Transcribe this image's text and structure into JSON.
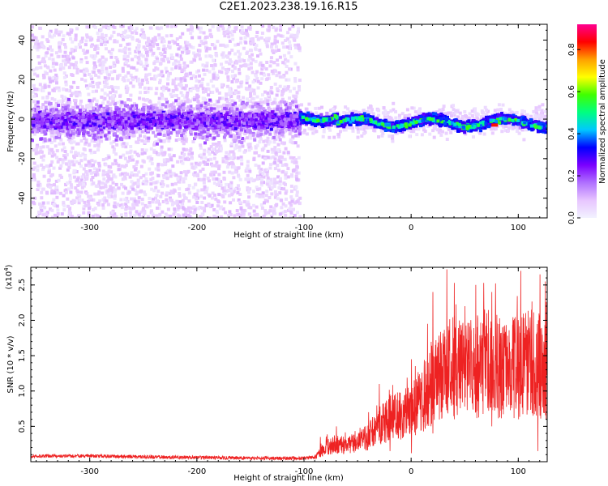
{
  "title": "C2E1.2023.238.19.16.R15",
  "colors": {
    "snr_line": "#ee2222",
    "axis": "#000000",
    "colorbar_stops": [
      "#f2f2ff",
      "#e7c5ff",
      "#b070ff",
      "#7a00ff",
      "#0000ff",
      "#00c8ff",
      "#00ff80",
      "#40ff00",
      "#ffff00",
      "#ffa000",
      "#ff0000",
      "#ff0090"
    ]
  },
  "chart_data": [
    {
      "type": "heatmap",
      "name": "spectrogram",
      "xlabel": "Height of straight line (km)",
      "ylabel": "Frequency (Hz)",
      "xlim": [
        -355,
        127
      ],
      "ylim": [
        -50,
        48
      ],
      "xticks": [
        -300,
        -200,
        -100,
        0,
        100
      ],
      "yticks": [
        -40,
        -20,
        0,
        20,
        40
      ],
      "colorbar": {
        "label": "Normalized spectral amplitude",
        "range": [
          0.0,
          0.92
        ],
        "ticks": [
          0.0,
          0.2,
          0.4,
          0.6,
          0.8
        ]
      },
      "features": {
        "noise_region_x": [
          -355,
          -105
        ],
        "signal_region_x": [
          -105,
          127
        ],
        "band_center_hz": 0,
        "band_width_hz": 10,
        "peak_amplitude_x": 78,
        "peak_amplitude_hz": -3
      }
    },
    {
      "type": "line",
      "name": "snr",
      "xlabel": "Height of straight line (km)",
      "ylabel": "SNR (10 * v/v)",
      "y_multiplier": "(x10",
      "y_multiplier_exp": "4",
      "y_multiplier_close": ")",
      "xlim": [
        -355,
        127
      ],
      "ylim": [
        0,
        27500
      ],
      "xticks": [
        -300,
        -200,
        -100,
        0,
        100
      ],
      "yticks": [
        5000,
        10000,
        15000,
        20000,
        25000
      ],
      "ytick_labels": [
        "0.5",
        "1.0",
        "1.5",
        "2.0",
        "2.5"
      ],
      "series": [
        {
          "x": [
            -355,
            -300,
            -250,
            -200,
            -150,
            -100,
            -90,
            -80,
            -70,
            -60,
            -50,
            -40,
            -30,
            -20,
            -10,
            0,
            10,
            20,
            30,
            40,
            50,
            60,
            70,
            80,
            90,
            100,
            110,
            120,
            127
          ],
          "y": [
            800,
            800,
            700,
            600,
            500,
            500,
            600,
            2000,
            2500,
            2200,
            3000,
            3500,
            5000,
            6000,
            6500,
            7000,
            9000,
            11000,
            12500,
            13500,
            13000,
            13500,
            14000,
            13500,
            13000,
            13500,
            14000,
            13500,
            13000
          ],
          "peaks": [
            [
              -85,
              3500
            ],
            [
              -70,
              5000
            ],
            [
              -40,
              7000
            ],
            [
              -30,
              11000
            ],
            [
              -20,
              9500
            ],
            [
              0,
              14500
            ],
            [
              15,
              19500
            ],
            [
              20,
              24000
            ],
            [
              33,
              27200
            ],
            [
              40,
              25300
            ],
            [
              50,
              22000
            ],
            [
              60,
              25000
            ],
            [
              75,
              24000
            ],
            [
              85,
              19000
            ],
            [
              102,
              27000
            ],
            [
              112,
              21500
            ],
            [
              120,
              26500
            ],
            [
              125,
              25500
            ]
          ],
          "troughs": [
            [
              -20,
              1500
            ],
            [
              0,
              1200
            ],
            [
              20,
              4000
            ],
            [
              40,
              6000
            ],
            [
              60,
              7000
            ],
            [
              75,
              5000
            ],
            [
              100,
              6000
            ],
            [
              118,
              1500
            ],
            [
              120,
              6500
            ]
          ]
        }
      ]
    }
  ]
}
